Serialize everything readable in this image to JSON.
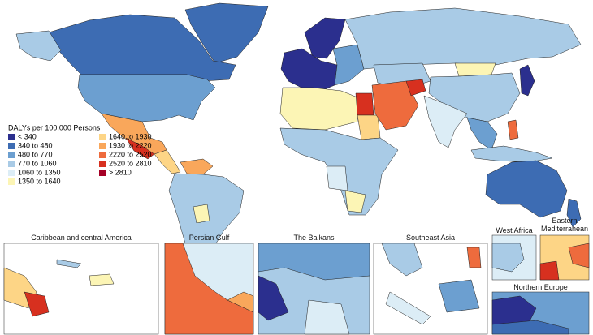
{
  "legend": {
    "title": "DALYs per 100,000 Persons",
    "items": [
      {
        "label": "< 340",
        "color": "#2b2f8e"
      },
      {
        "label": "340 to 480",
        "color": "#3d6cb3"
      },
      {
        "label": "480 to 770",
        "color": "#6c9fd0"
      },
      {
        "label": "770 to 1060",
        "color": "#a9cbe6"
      },
      {
        "label": "1060 to 1350",
        "color": "#dcedf6"
      },
      {
        "label": "1350 to 1640",
        "color": "#fcf5b5"
      },
      {
        "label": "1640 to 1930",
        "color": "#fdd586"
      },
      {
        "label": "1930 to 2220",
        "color": "#f9a75b"
      },
      {
        "label": "2220 to 2520",
        "color": "#ee6b3d"
      },
      {
        "label": "2520 to 2810",
        "color": "#d7301f"
      },
      {
        "label": "> 2810",
        "color": "#a50026"
      }
    ]
  },
  "insets": [
    {
      "title": "Caribbean and central America"
    },
    {
      "title": "Persian Gulf"
    },
    {
      "title": "The Balkans"
    },
    {
      "title": "Southeast Asia"
    },
    {
      "title": "West Africa"
    },
    {
      "title": "Eastern Mediterranean"
    },
    {
      "title": "Northern Europe"
    }
  ]
}
